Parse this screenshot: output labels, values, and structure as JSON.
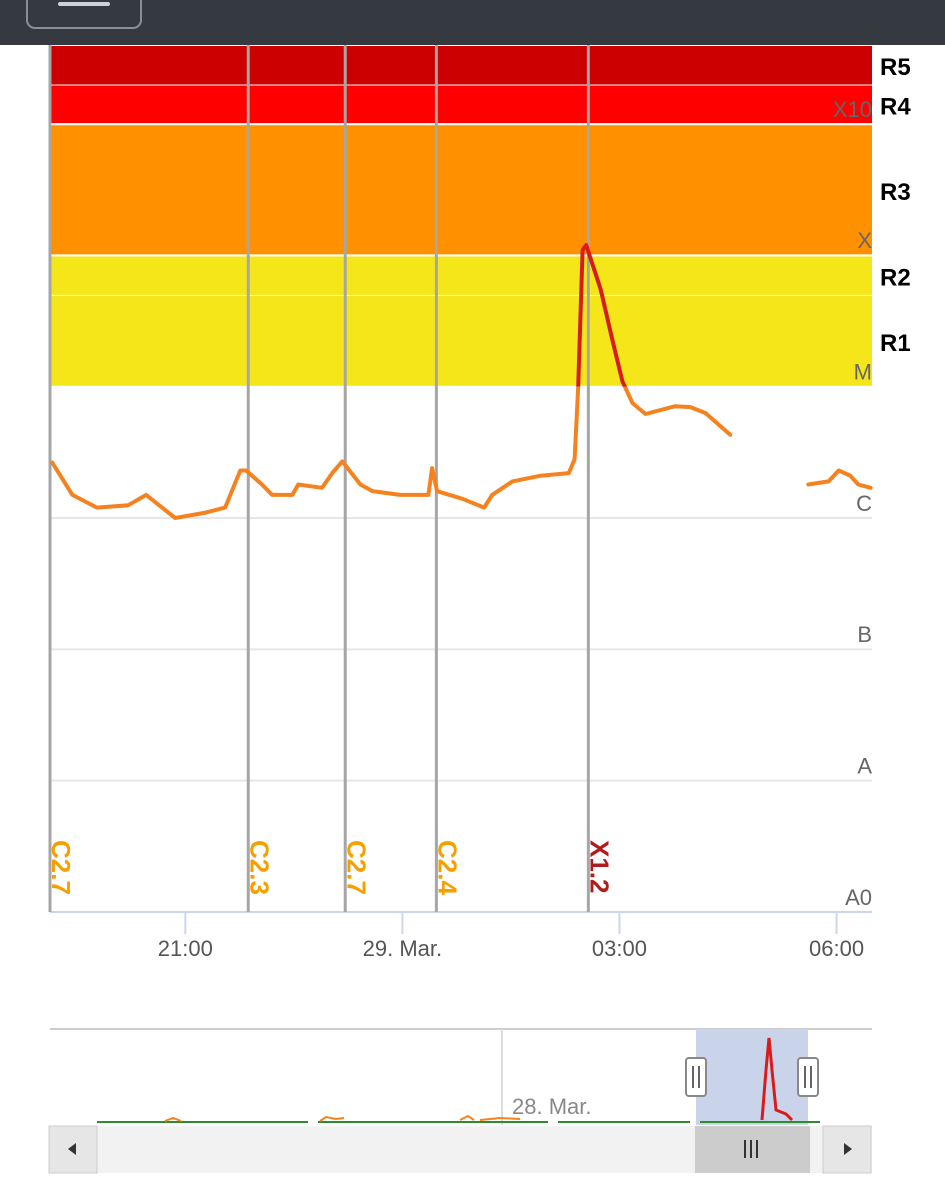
{
  "chart_data": {
    "type": "line",
    "log_scale": true,
    "ylim": [
      1e-09,
      0.004
    ],
    "yticks": [
      {
        "value": 1e-09,
        "label": "A0"
      },
      {
        "value": 1e-08,
        "label": "A"
      },
      {
        "value": 1e-07,
        "label": "B"
      },
      {
        "value": 1e-06,
        "label": "C"
      },
      {
        "value": 1e-05,
        "label": "M"
      },
      {
        "value": 0.0001,
        "label": "X"
      },
      {
        "value": 0.001,
        "label": "X10"
      }
    ],
    "xlim": [
      -4.87,
      6.49
    ],
    "xticks": [
      {
        "value": -3,
        "label": "21:00"
      },
      {
        "value": 0,
        "label": "29. Mar."
      },
      {
        "value": 3,
        "label": "03:00"
      },
      {
        "value": 6,
        "label": "06:00"
      }
    ],
    "bands": [
      {
        "label": "R1",
        "from": 1e-05,
        "to": 5e-05,
        "color": "#f5e61a"
      },
      {
        "label": "R2",
        "from": 5e-05,
        "to": 0.0001,
        "color": "#f5e61a"
      },
      {
        "label": "R3",
        "from": 0.0001,
        "to": 0.001,
        "color": "#ff9100"
      },
      {
        "label": "R4",
        "from": 0.001,
        "to": 0.002,
        "color": "#ff0000"
      },
      {
        "label": "R5",
        "from": 0.002,
        "to": 0.004,
        "color": "#cc0000"
      }
    ],
    "flares": [
      {
        "time": -4.87,
        "label": "C2.7",
        "color": "#f5a000"
      },
      {
        "time": -2.13,
        "label": "C2.3",
        "color": "#f5a000"
      },
      {
        "time": -0.79,
        "label": "C2.7",
        "color": "#f5a000"
      },
      {
        "time": 0.47,
        "label": "C2.4",
        "color": "#f5a000"
      },
      {
        "time": 2.57,
        "label": "X1.2",
        "color": "#b01c1c"
      }
    ],
    "color": "#f5821f",
    "high_color": "#d81c1c",
    "high_from": 1e-05,
    "x": [
      -4.84,
      -4.56,
      -4.22,
      -3.79,
      -3.54,
      -3.14,
      -2.72,
      -2.45,
      -2.24,
      -2.16,
      -1.94,
      -1.8,
      -1.52,
      -1.44,
      -1.11,
      -0.97,
      -0.83,
      -0.58,
      -0.41,
      -0.03,
      0.36,
      0.41,
      0.48,
      0.83,
      1.13,
      1.24,
      1.52,
      1.91,
      2.3,
      2.38,
      2.43,
      2.49,
      2.54,
      2.74,
      2.9,
      3.04,
      3.18,
      3.36,
      3.77,
      3.98,
      4.19,
      4.53,
      5.0,
      5.61,
      5.89,
      6.03,
      6.19,
      6.3,
      6.47
    ],
    "values": [
      2.65e-06,
      1.5e-06,
      1.2e-06,
      1.25e-06,
      1.5e-06,
      1e-06,
      1.1e-06,
      1.2e-06,
      2.3e-06,
      2.3e-06,
      1.8e-06,
      1.5e-06,
      1.5e-06,
      1.8e-06,
      1.7e-06,
      2.2e-06,
      2.7e-06,
      1.8e-06,
      1.6e-06,
      1.5e-06,
      1.5e-06,
      2.4e-06,
      1.6e-06,
      1.4e-06,
      1.2e-06,
      1.5e-06,
      1.9e-06,
      2.1e-06,
      2.2e-06,
      2.8e-06,
      1e-05,
      0.00011,
      0.00012,
      5.5e-05,
      2.3e-05,
      1.1e-05,
      7.5e-06,
      6.2e-06,
      7.1e-06,
      7e-06,
      6.3e-06,
      4.3e-06,
      null,
      1.8e-06,
      1.9e-06,
      2.3e-06,
      2.1e-06,
      1.8e-06,
      1.7e-06
    ],
    "navigator": {
      "label": "28. Mar."
    }
  }
}
